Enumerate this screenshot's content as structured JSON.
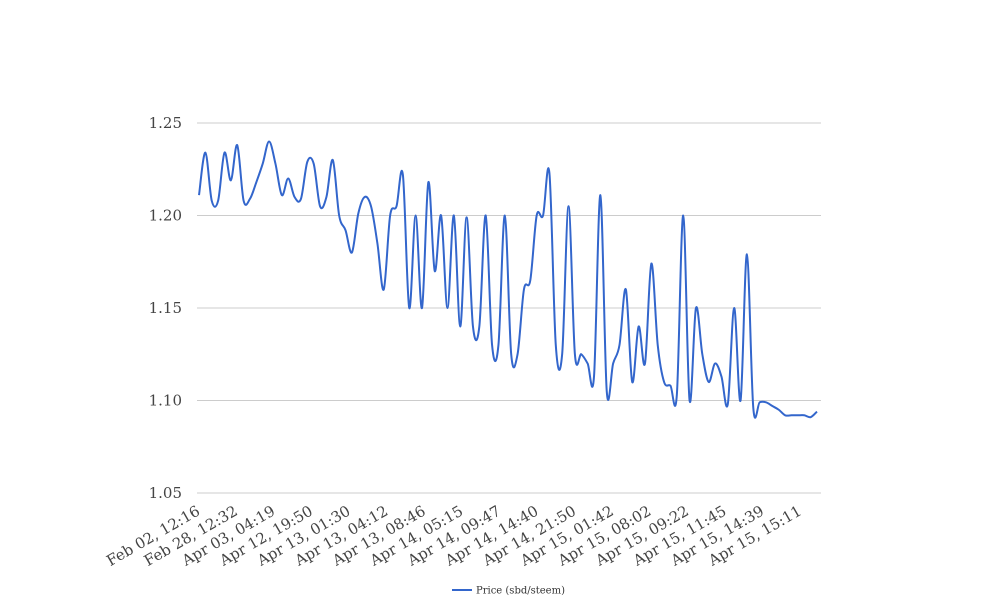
{
  "chart_data": {
    "type": "line",
    "title": "",
    "xlabel": "",
    "ylabel": "",
    "ylim": [
      1.05,
      1.25
    ],
    "yticks": [
      "1.05",
      "1.10",
      "1.15",
      "1.20",
      "1.25"
    ],
    "grid": "horizontal",
    "legend_position": "bottom",
    "x_tick_labels": [
      "Feb 02, 12:16",
      "Feb 28, 12:32",
      "Apr 03, 04:19",
      "Apr 12, 19:50",
      "Apr 13, 01:30",
      "Apr 13, 04:12",
      "Apr 13, 08:46",
      "Apr 14, 05:15",
      "Apr 14, 09:47",
      "Apr 14, 14:40",
      "Apr 14, 21:50",
      "Apr 15, 01:42",
      "Apr 15, 08:02",
      "Apr 15, 09:22",
      "Apr 15, 11:45",
      "Apr 15, 14:39",
      "Apr 15, 15:11"
    ],
    "series": [
      {
        "name": "Price (sbd/steem)",
        "color": "#3366cc",
        "values": [
          1.211,
          1.234,
          1.208,
          1.208,
          1.234,
          1.219,
          1.238,
          1.208,
          1.209,
          1.218,
          1.228,
          1.24,
          1.228,
          1.211,
          1.22,
          1.21,
          1.209,
          1.229,
          1.228,
          1.205,
          1.21,
          1.23,
          1.2,
          1.192,
          1.18,
          1.201,
          1.21,
          1.205,
          1.185,
          1.16,
          1.2,
          1.205,
          1.222,
          1.15,
          1.2,
          1.15,
          1.218,
          1.17,
          1.2,
          1.15,
          1.2,
          1.14,
          1.199,
          1.14,
          1.14,
          1.2,
          1.13,
          1.13,
          1.2,
          1.125,
          1.125,
          1.16,
          1.165,
          1.2,
          1.2,
          1.223,
          1.13,
          1.125,
          1.205,
          1.125,
          1.125,
          1.12,
          1.113,
          1.211,
          1.105,
          1.12,
          1.13,
          1.16,
          1.11,
          1.14,
          1.12,
          1.174,
          1.13,
          1.11,
          1.108,
          1.103,
          1.2,
          1.1,
          1.15,
          1.125,
          1.11,
          1.12,
          1.113,
          1.098,
          1.15,
          1.1,
          1.179,
          1.096,
          1.099,
          1.099,
          1.097,
          1.095,
          1.092,
          1.092,
          1.092,
          1.092,
          1.091,
          1.094
        ]
      }
    ]
  }
}
